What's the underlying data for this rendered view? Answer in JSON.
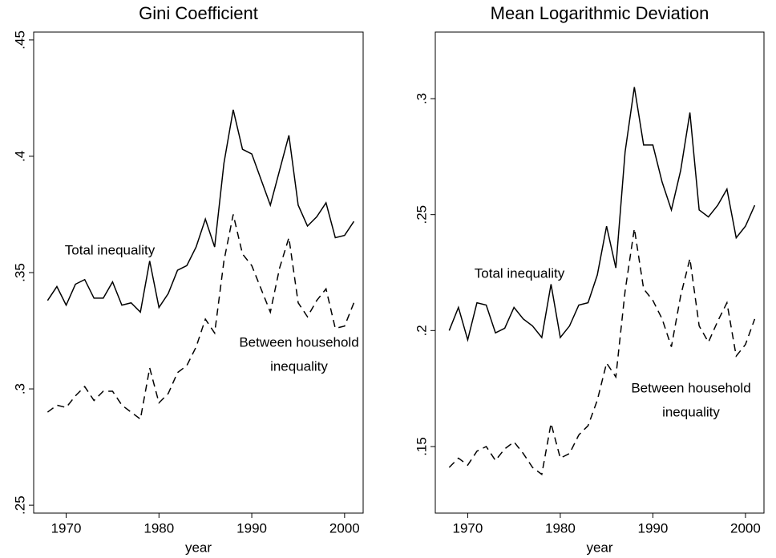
{
  "chart_data": [
    {
      "type": "line",
      "title": "Gini Coefficient",
      "xlabel": "year",
      "x": [
        1968,
        1969,
        1970,
        1971,
        1972,
        1973,
        1974,
        1975,
        1976,
        1977,
        1978,
        1979,
        1980,
        1981,
        1982,
        1983,
        1984,
        1985,
        1986,
        1987,
        1988,
        1989,
        1990,
        1991,
        1992,
        1993,
        1994,
        1995,
        1996,
        1997,
        1998,
        1999,
        2000,
        2001
      ],
      "xlim": [
        1966.5,
        2002
      ],
      "xticks": [
        1970,
        1980,
        1990,
        2000
      ],
      "ylim": [
        0.2466,
        0.4534
      ],
      "yticks": [
        {
          "value": 0.25,
          "label": ".25"
        },
        {
          "value": 0.3,
          "label": ".3"
        },
        {
          "value": 0.35,
          "label": ".35"
        },
        {
          "value": 0.4,
          "label": ".4"
        },
        {
          "value": 0.45,
          "label": ".45"
        }
      ],
      "series": [
        {
          "color": "#000000",
          "style": "solid",
          "values": [
            0.338,
            0.344,
            0.336,
            0.345,
            0.347,
            0.339,
            0.339,
            0.346,
            0.336,
            0.337,
            0.333,
            0.355,
            0.335,
            0.341,
            0.351,
            0.353,
            0.361,
            0.373,
            0.361,
            0.397,
            0.42,
            0.403,
            0.401,
            0.39,
            0.379,
            0.394,
            0.409,
            0.379,
            0.37,
            0.374,
            0.38,
            0.365,
            0.366,
            0.372
          ]
        },
        {
          "color": "#000000",
          "style": "dashed",
          "values": [
            0.29,
            0.293,
            0.292,
            0.297,
            0.301,
            0.295,
            0.299,
            0.299,
            0.293,
            0.29,
            0.287,
            0.309,
            0.294,
            0.298,
            0.307,
            0.31,
            0.318,
            0.33,
            0.324,
            0.355,
            0.375,
            0.358,
            0.353,
            0.343,
            0.333,
            0.352,
            0.365,
            0.337,
            0.331,
            0.338,
            0.343,
            0.326,
            0.327,
            0.337
          ]
        }
      ],
      "annotations": [
        "Total inequality",
        "Between household",
        "inequality"
      ]
    },
    {
      "type": "line",
      "title": "Mean Logarithmic Deviation",
      "xlabel": "year",
      "x": [
        1968,
        1969,
        1970,
        1971,
        1972,
        1973,
        1974,
        1975,
        1976,
        1977,
        1978,
        1979,
        1980,
        1981,
        1982,
        1983,
        1984,
        1985,
        1986,
        1987,
        1988,
        1989,
        1990,
        1991,
        1992,
        1993,
        1994,
        1995,
        1996,
        1997,
        1998,
        1999,
        2000,
        2001
      ],
      "xlim": [
        1966.5,
        2002
      ],
      "xticks": [
        1970,
        1980,
        1990,
        2000
      ],
      "ylim": [
        0.1213,
        0.3287
      ],
      "yticks": [
        {
          "value": 0.15,
          "label": ".15"
        },
        {
          "value": 0.2,
          "label": ".2"
        },
        {
          "value": 0.25,
          "label": ".25"
        },
        {
          "value": 0.3,
          "label": ".3"
        }
      ],
      "series": [
        {
          "color": "#000000",
          "style": "solid",
          "values": [
            0.2,
            0.21,
            0.196,
            0.212,
            0.211,
            0.199,
            0.201,
            0.21,
            0.205,
            0.202,
            0.197,
            0.22,
            0.197,
            0.202,
            0.211,
            0.212,
            0.224,
            0.245,
            0.227,
            0.277,
            0.305,
            0.28,
            0.28,
            0.264,
            0.252,
            0.269,
            0.294,
            0.252,
            0.249,
            0.254,
            0.261,
            0.24,
            0.245,
            0.254
          ]
        },
        {
          "color": "#000000",
          "style": "dashed",
          "values": [
            0.141,
            0.145,
            0.142,
            0.148,
            0.15,
            0.144,
            0.149,
            0.152,
            0.147,
            0.141,
            0.138,
            0.16,
            0.145,
            0.147,
            0.155,
            0.159,
            0.17,
            0.186,
            0.18,
            0.217,
            0.244,
            0.218,
            0.213,
            0.205,
            0.193,
            0.215,
            0.231,
            0.202,
            0.195,
            0.204,
            0.212,
            0.189,
            0.194,
            0.205
          ]
        }
      ],
      "annotations": [
        "Total inequality",
        "Between household",
        "inequality"
      ]
    }
  ]
}
